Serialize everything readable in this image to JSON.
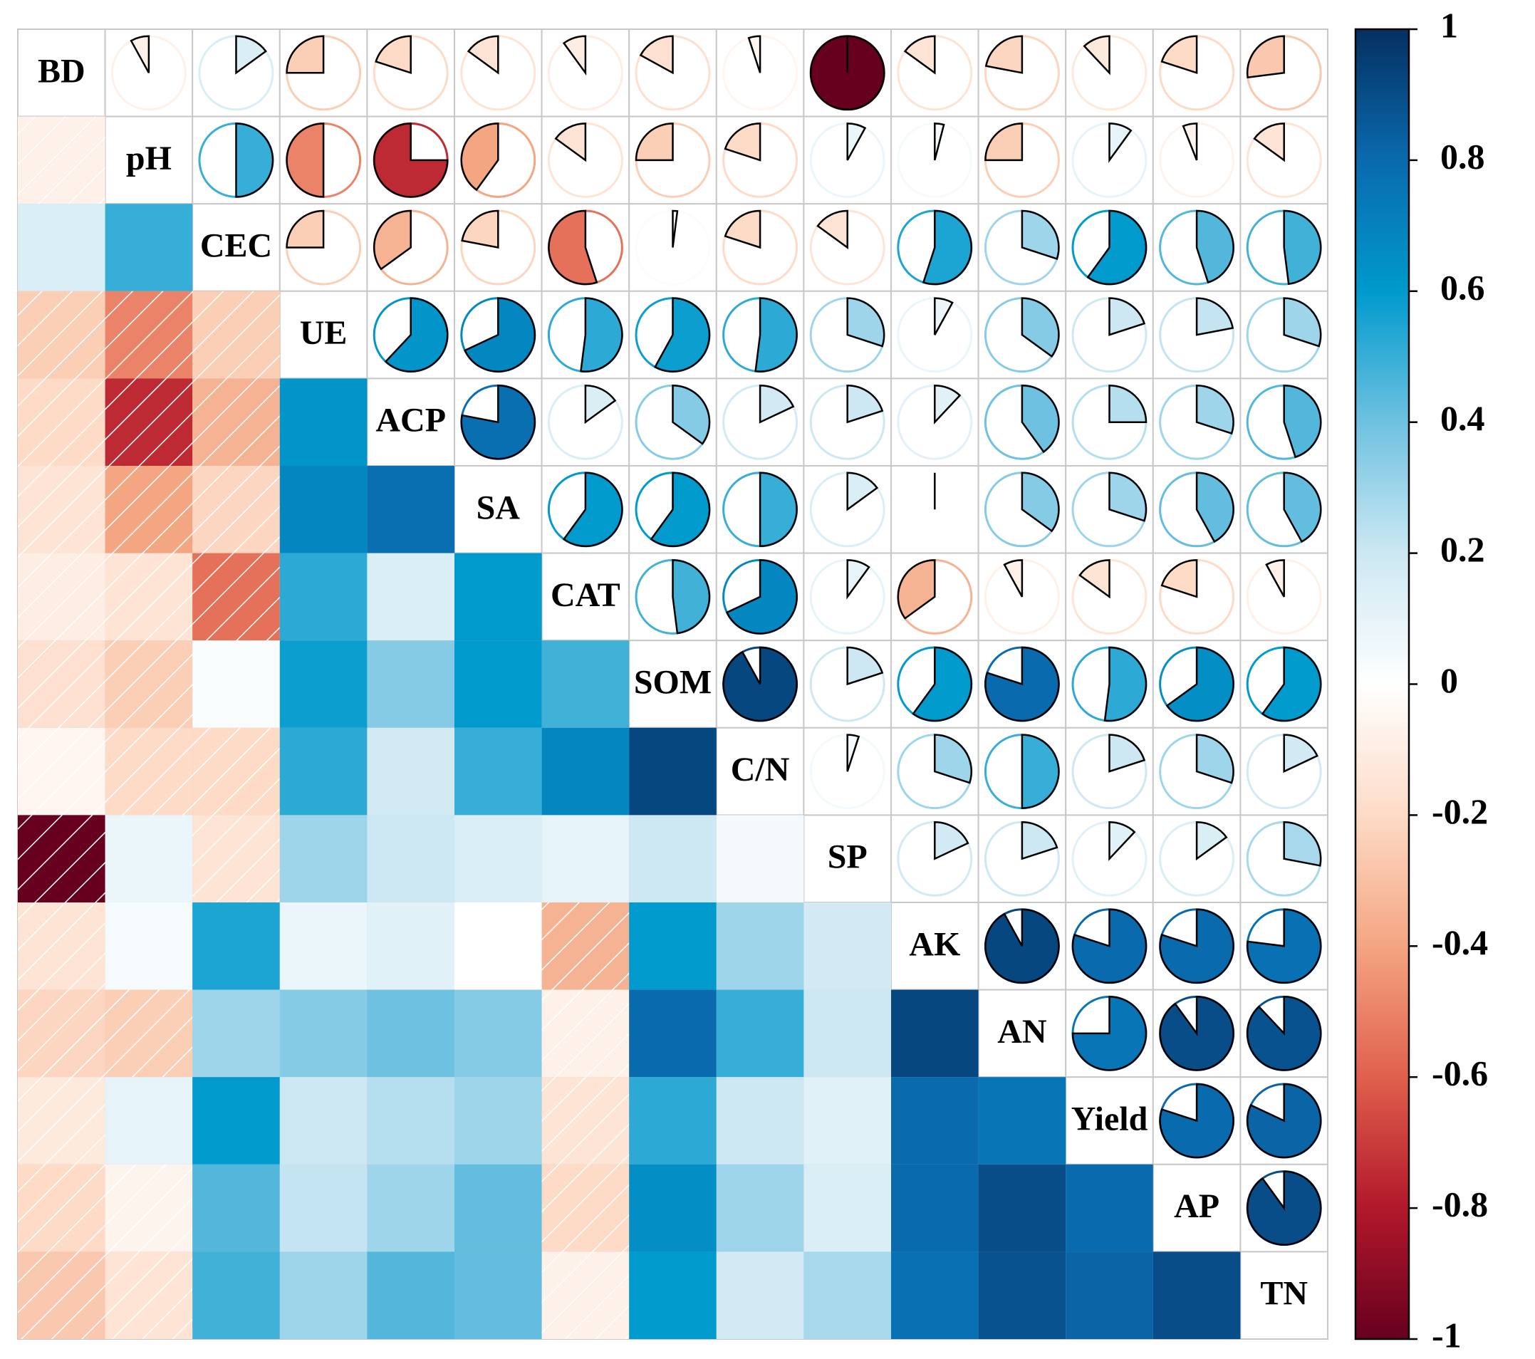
{
  "chart_data": {
    "type": "corrplot",
    "variables": [
      "BD",
      "pH",
      "CEC",
      "UE",
      "ACP",
      "SA",
      "CAT",
      "SOM",
      "C/N",
      "SP",
      "AK",
      "AN",
      "Yield",
      "AP",
      "TN"
    ],
    "correlations": [
      [
        -0.08
      ],
      [
        0.15,
        0.5
      ],
      [
        -0.25,
        -0.5,
        -0.25
      ],
      [
        -0.2,
        -0.75,
        -0.35,
        0.62
      ],
      [
        -0.15,
        -0.4,
        -0.22,
        0.68,
        0.78
      ],
      [
        -0.1,
        -0.15,
        -0.55,
        0.52,
        0.15,
        0.6
      ],
      [
        -0.17,
        -0.25,
        0.02,
        0.58,
        0.35,
        0.6,
        0.48
      ],
      [
        -0.05,
        -0.2,
        -0.2,
        0.52,
        0.18,
        0.5,
        0.68,
        0.92
      ],
      [
        -1.0,
        0.08,
        -0.15,
        0.3,
        0.2,
        0.15,
        0.1,
        0.2,
        0.05
      ],
      [
        -0.15,
        0.04,
        0.55,
        0.08,
        0.12,
        0.0,
        -0.35,
        0.6,
        0.3,
        0.18
      ],
      [
        -0.22,
        -0.25,
        0.3,
        0.35,
        0.4,
        0.35,
        -0.08,
        0.8,
        0.5,
        0.2,
        0.92
      ],
      [
        -0.12,
        0.1,
        0.6,
        0.2,
        0.25,
        0.3,
        -0.15,
        0.52,
        0.2,
        0.12,
        0.8,
        0.75
      ],
      [
        -0.2,
        -0.06,
        0.45,
        0.22,
        0.3,
        0.42,
        -0.2,
        0.65,
        0.3,
        0.15,
        0.8,
        0.9,
        0.8
      ],
      [
        -0.27,
        -0.15,
        0.48,
        0.3,
        0.45,
        0.42,
        -0.08,
        0.6,
        0.18,
        0.28,
        0.77,
        0.88,
        0.82,
        0.9
      ]
    ],
    "colorscale": [
      "#67001F",
      "#B2182B",
      "#E0604D",
      "#F4A582",
      "#FDDBC7",
      "#FFFFFF",
      "#CDE8F3",
      "#6EC1E0",
      "#009ACD",
      "#0A6AAE",
      "#053061"
    ],
    "ylim": [
      -1,
      1
    ],
    "yticks": [
      -1,
      -0.8,
      -0.6,
      -0.4,
      -0.2,
      0,
      0.2,
      0.4,
      0.6,
      0.8,
      1
    ],
    "negative_hatch": true
  }
}
